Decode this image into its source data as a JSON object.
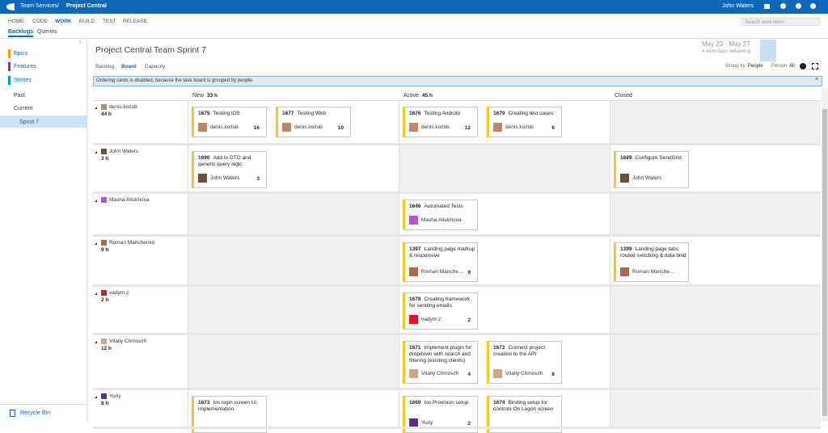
{
  "header": {
    "product": "Team Services",
    "separator": "/",
    "project": "Project Central",
    "user": "John Waters"
  },
  "nav": {
    "items": [
      "HOME",
      "CODE",
      "WORK",
      "BUILD",
      "TEST",
      "RELEASE"
    ],
    "search": "Search work items"
  },
  "subnav": {
    "items": [
      "Backlogs",
      "Queries"
    ]
  },
  "sidebar": {
    "backlogs": [
      "Epics",
      "Features",
      "Stories"
    ],
    "iterations": [
      "Past",
      "Current",
      "Sprint 7"
    ],
    "recycle": "Recycle Bin"
  },
  "sprint": {
    "title": "Project Central Team Sprint 7",
    "dates": "May 23 - May 27",
    "remaining": "4 work days remaining"
  },
  "tabs": [
    "Backlog",
    "Board",
    "Capacity"
  ],
  "group": {
    "label": "Group by",
    "value": "People",
    "person_label": "Person",
    "person_value": "All"
  },
  "notice": "Ordering cards is disabled, because the task board is grouped by people.",
  "columns": [
    {
      "name": "New",
      "hours": "33 h"
    },
    {
      "name": "Active",
      "hours": "45 h"
    },
    {
      "name": "Closed"
    }
  ],
  "rows": [
    {
      "person": "denis.kozub",
      "hours": "44 h",
      "cells": [
        [
          {
            "id": "1675",
            "title": "Testing iOS",
            "assignee": "denis.kozub",
            "remaining": "16"
          },
          {
            "id": "1677",
            "title": "Testing Web",
            "assignee": "denis.kozub",
            "remaining": "10"
          }
        ],
        [
          {
            "id": "1676",
            "title": "Testing Android",
            "assignee": "denis.kozub",
            "remaining": "12"
          },
          {
            "id": "1679",
            "title": "Creating test cases",
            "assignee": "denis.kozub",
            "remaining": "6"
          }
        ],
        []
      ]
    },
    {
      "person": "John Waters",
      "hours": "3 h",
      "cells": [
        [
          {
            "id": "1690",
            "title": "Add to DTO and generic query logic",
            "assignee": "John Waters",
            "remaining": "3"
          }
        ],
        [],
        [
          {
            "id": "1689",
            "title": "Configure SendGrid",
            "assignee": "John Waters"
          }
        ]
      ]
    },
    {
      "person": "Masha Altukhova",
      "cells": [
        [],
        [
          {
            "id": "1646",
            "title": "Automated Tests",
            "assignee": "Masha Altukhova"
          }
        ],
        []
      ]
    },
    {
      "person": "Roman Manchenko",
      "hours": "9 h",
      "cells": [
        [],
        [
          {
            "id": "1397",
            "title": "Landing page markup & responsive",
            "assignee": "Roman Manche...",
            "remaining": "9"
          }
        ],
        [
          {
            "id": "1399",
            "title": "Landing page tabs routed switching & data bind",
            "assignee": "Roman Manche..."
          }
        ]
      ]
    },
    {
      "person": "vadym z",
      "hours": "2 h",
      "cells": [
        [],
        [
          {
            "id": "1678",
            "title": "Creating framework for sending emails",
            "assignee": "vadym z",
            "remaining": "2"
          }
        ],
        []
      ]
    },
    {
      "person": "Vitaliy Chmovzh",
      "hours": "12 h",
      "cells": [
        [],
        [
          {
            "id": "1671",
            "title": "Implement plugin for dropdown with search and filtering (existing clients)",
            "assignee": "Vitaliy Chmovzh",
            "remaining": "4"
          },
          {
            "id": "1672",
            "title": "Connect project creation to the API",
            "assignee": "Vitaliy Chmovzh",
            "remaining": "8"
          }
        ],
        []
      ]
    },
    {
      "person": "Yuriy",
      "hours": "8 h",
      "cells": [
        [
          {
            "id": "1673",
            "title": "Ios login screen Ui implementation"
          }
        ],
        [
          {
            "id": "1669",
            "title": "Ios Provision setup",
            "assignee": "Yuriy",
            "remaining": "2"
          },
          {
            "id": "1674",
            "title": "Binding setup for controls On Logon screen"
          }
        ],
        []
      ]
    }
  ]
}
